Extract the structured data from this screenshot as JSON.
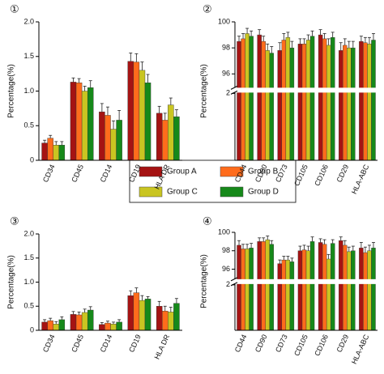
{
  "legend": {
    "items": [
      {
        "name": "Group A",
        "color": "#a51313"
      },
      {
        "name": "Group B",
        "color": "#ff6c1c"
      },
      {
        "name": "Group C",
        "color": "#c9c521"
      },
      {
        "name": "Group D",
        "color": "#16891a"
      }
    ]
  },
  "chart_data": [
    {
      "type": "bar",
      "label": "①",
      "ylabel": "Percentage(%)",
      "categories": [
        "CD34",
        "CD45",
        "CD14",
        "CD19",
        "HLA DR"
      ],
      "ylim": [
        0,
        2
      ],
      "yticks": [
        0,
        0.5,
        {
          "value": 1,
          "label": "1.0"
        },
        1.5,
        {
          "value": 2,
          "label": "2.0"
        }
      ],
      "series": [
        {
          "values": [
            0.25,
            1.13,
            0.7,
            1.43,
            0.68
          ],
          "errors": [
            0.04,
            0.06,
            0.12,
            0.12,
            0.1
          ]
        },
        {
          "values": [
            0.32,
            1.12,
            0.65,
            1.42,
            0.58
          ],
          "errors": [
            0.04,
            0.06,
            0.12,
            0.12,
            0.1
          ]
        },
        {
          "values": [
            0.22,
            1.0,
            0.45,
            1.3,
            0.8
          ],
          "errors": [
            0.05,
            0.07,
            0.12,
            0.12,
            0.1
          ]
        },
        {
          "values": [
            0.22,
            1.05,
            0.58,
            1.12,
            0.63
          ],
          "errors": [
            0.05,
            0.1,
            0.14,
            0.12,
            0.1
          ]
        }
      ]
    },
    {
      "type": "bar",
      "label": "②",
      "ylabel": "Percentage(%)",
      "categories": [
        "CD44",
        "CD90",
        "CD73",
        "CD105",
        "CD106",
        "CD29",
        "HLA-ABC"
      ],
      "ylim": [
        95,
        100
      ],
      "yticks": [
        96,
        98,
        100
      ],
      "ylim_break": [
        0,
        2
      ],
      "yticks_break": [
        2
      ],
      "series": [
        {
          "values": [
            98.5,
            99.0,
            97.8,
            98.3,
            99.0,
            97.8,
            98.5
          ],
          "errors": [
            0.4,
            0.4,
            0.6,
            0.4,
            0.4,
            0.6,
            0.4
          ]
        },
        {
          "values": [
            98.7,
            98.5,
            98.6,
            98.3,
            98.7,
            98.2,
            98.4
          ],
          "errors": [
            0.4,
            0.4,
            0.5,
            0.4,
            0.4,
            0.5,
            0.4
          ]
        },
        {
          "values": [
            99.1,
            97.8,
            98.8,
            98.6,
            98.2,
            98.0,
            98.3
          ],
          "errors": [
            0.4,
            0.5,
            0.4,
            0.4,
            0.5,
            0.5,
            0.5
          ]
        },
        {
          "values": [
            98.9,
            97.6,
            98.0,
            98.9,
            98.8,
            98.0,
            98.6
          ],
          "errors": [
            0.4,
            0.5,
            0.5,
            0.4,
            0.4,
            0.5,
            0.5
          ]
        }
      ]
    },
    {
      "type": "bar",
      "label": "③",
      "ylabel": "Percentage(%)",
      "categories": [
        "CD34",
        "CD45",
        "CD14",
        "CD19",
        "HLA DR"
      ],
      "ylim": [
        0,
        2
      ],
      "yticks": [
        0,
        0.5,
        {
          "value": 1,
          "label": "1.0"
        },
        1.5,
        {
          "value": 2,
          "label": "2.0"
        }
      ],
      "series": [
        {
          "values": [
            0.17,
            0.33,
            0.12,
            0.72,
            0.5
          ],
          "errors": [
            0.05,
            0.06,
            0.04,
            0.1,
            0.1
          ]
        },
        {
          "values": [
            0.2,
            0.32,
            0.15,
            0.78,
            0.4
          ],
          "errors": [
            0.05,
            0.06,
            0.04,
            0.1,
            0.1
          ]
        },
        {
          "values": [
            0.13,
            0.37,
            0.13,
            0.62,
            0.38
          ],
          "errors": [
            0.05,
            0.07,
            0.04,
            0.1,
            0.1
          ]
        },
        {
          "values": [
            0.22,
            0.42,
            0.17,
            0.65,
            0.56
          ],
          "errors": [
            0.06,
            0.07,
            0.05,
            0.05,
            0.1
          ]
        }
      ]
    },
    {
      "type": "bar",
      "label": "④",
      "ylabel": "Percentage(%)",
      "categories": [
        "CD44",
        "CD90",
        "CD73",
        "CD105",
        "CD106",
        "CD29",
        "HLA-ABC"
      ],
      "ylim": [
        95,
        100
      ],
      "yticks": [
        96,
        98,
        100
      ],
      "ylim_break": [
        0,
        2
      ],
      "yticks_break": [
        2
      ],
      "series": [
        {
          "values": [
            98.6,
            99.0,
            96.6,
            98.0,
            98.9,
            99.1,
            98.3
          ],
          "errors": [
            0.5,
            0.4,
            0.4,
            0.5,
            0.4,
            0.4,
            0.6
          ]
        },
        {
          "values": [
            98.2,
            99.0,
            97.0,
            98.1,
            98.7,
            98.6,
            97.8
          ],
          "errors": [
            0.5,
            0.4,
            0.4,
            0.5,
            0.5,
            0.5,
            0.6
          ]
        },
        {
          "values": [
            98.2,
            99.2,
            97.0,
            98.0,
            97.1,
            97.9,
            98.0
          ],
          "errors": [
            0.5,
            0.4,
            0.4,
            0.5,
            0.5,
            0.5,
            0.6
          ]
        },
        {
          "values": [
            98.3,
            98.7,
            96.8,
            99.0,
            98.8,
            98.0,
            98.3
          ],
          "errors": [
            0.5,
            0.4,
            0.4,
            0.5,
            0.4,
            0.5,
            0.6
          ]
        }
      ]
    }
  ]
}
